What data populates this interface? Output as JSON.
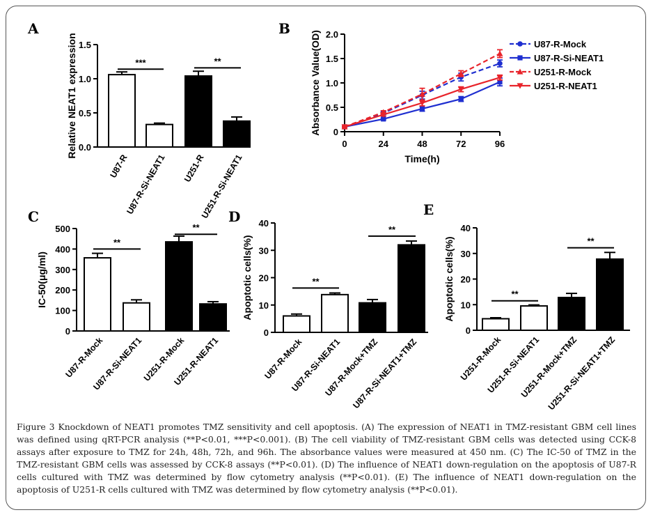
{
  "caption": "Figure 3 Knockdown of NEAT1 promotes TMZ sensitivity and cell apoptosis. (A) The expression of NEAT1 in TMZ-resistant GBM cell lines was defined using qRT-PCR analysis (**P<0.01, ***P<0.001). (B) The cell viability of TMZ-resistant GBM cells was detected using CCK-8 assays after exposure to TMZ for 24h, 48h, 72h, and 96h. The absorbance values were measured at 450 nm. (C) The IC-50 of TMZ in the TMZ-resistant GBM cells was assessed by CCK-8 assays (**P<0.01). (D) The influence of NEAT1 down-regulation on the apoptosis of U87-R cells cultured with TMZ was determined by flow cytometry analysis (**P<0.01). (E) The influence of NEAT1 down-regulation on the apoptosis of U251-R cells cultured with TMZ was determined by flow cytometry analysis (**P<0.01).",
  "chart_data": [
    {
      "panel": "A",
      "type": "bar",
      "title": "",
      "ylabel": "Relative NEAT1 expression",
      "xlabel": "",
      "categories": [
        "U87-R",
        "U87-R-Si-NEAT1",
        "U251-R",
        "U251-R-Si-NEAT1"
      ],
      "values": [
        1.06,
        0.33,
        1.04,
        0.38
      ],
      "errors": [
        0.04,
        0.02,
        0.07,
        0.06
      ],
      "fill": [
        "white",
        "white",
        "black",
        "black"
      ],
      "ylim": [
        0,
        1.5
      ],
      "yticks": [
        0.0,
        0.5,
        1.0,
        1.5
      ],
      "yticklabels": [
        "0.0",
        "0.5",
        "1.0",
        "1.5"
      ],
      "significance": [
        {
          "from": 0,
          "to": 1,
          "label": "***",
          "y": 1.14
        },
        {
          "from": 2,
          "to": 3,
          "label": "**",
          "y": 1.16
        }
      ]
    },
    {
      "panel": "B",
      "type": "line",
      "title": "",
      "xlabel": "Time(h)",
      "ylabel": "Absorbance Value(OD)",
      "x": [
        0,
        24,
        48,
        72,
        96
      ],
      "xticklabels": [
        "0",
        "24",
        "48",
        "72",
        "96"
      ],
      "xlim": [
        0,
        96
      ],
      "ylim": [
        0,
        2.0
      ],
      "yticks": [
        0,
        0.5,
        1.0,
        1.5,
        2.0
      ],
      "yticklabels": [
        "0",
        "0.5",
        "1.0",
        "1.5",
        "2.0"
      ],
      "legend_position": "right",
      "series": [
        {
          "name": "U87-R-Mock",
          "values": [
            0.1,
            0.38,
            0.75,
            1.12,
            1.4
          ],
          "errors": [
            0.01,
            0.03,
            0.08,
            0.08,
            0.07
          ],
          "color": "#1f2fd0",
          "dash": true,
          "marker": "circle"
        },
        {
          "name": "U87-R-Si-NEAT1",
          "values": [
            0.1,
            0.26,
            0.47,
            0.67,
            1.02
          ],
          "errors": [
            0.01,
            0.02,
            0.05,
            0.05,
            0.08
          ],
          "color": "#1f2fd0",
          "dash": false,
          "marker": "square"
        },
        {
          "name": "U251-R-Mock",
          "values": [
            0.1,
            0.4,
            0.77,
            1.19,
            1.6
          ],
          "errors": [
            0.01,
            0.03,
            0.12,
            0.06,
            0.08
          ],
          "color": "#e8242b",
          "dash": true,
          "marker": "triangle"
        },
        {
          "name": "U251-R-NEAT1",
          "values": [
            0.1,
            0.35,
            0.59,
            0.87,
            1.11
          ],
          "errors": [
            0.01,
            0.03,
            0.06,
            0.05,
            0.05
          ],
          "color": "#e8242b",
          "dash": false,
          "marker": "triangle-down"
        }
      ]
    },
    {
      "panel": "C",
      "type": "bar",
      "title": "",
      "ylabel": "IC-50(μg/ml)",
      "xlabel": "",
      "categories": [
        "U87-R-Mock",
        "U87-R-Si-NEAT1",
        "U251-R-Mock",
        "U251-R-NEAT1"
      ],
      "values": [
        357,
        137,
        435,
        132
      ],
      "errors": [
        22,
        15,
        28,
        11
      ],
      "fill": [
        "white",
        "white",
        "black",
        "black"
      ],
      "ylim": [
        0,
        500
      ],
      "yticks": [
        0,
        100,
        200,
        300,
        400,
        500
      ],
      "yticklabels": [
        "0",
        "100",
        "200",
        "300",
        "400",
        "500"
      ],
      "significance": [
        {
          "from": 0,
          "to": 1,
          "label": "**",
          "y": 400
        },
        {
          "from": 2,
          "to": 3,
          "label": "**",
          "y": 472
        }
      ]
    },
    {
      "panel": "D",
      "type": "bar",
      "title": "",
      "ylabel": "Apoptotic cells(%)",
      "xlabel": "",
      "categories": [
        "U87-R-Mock",
        "U87-R-Si-NEAT1",
        "U87-R-Mock+TMZ",
        "U87-R-Si-NEAT1+TMZ"
      ],
      "values": [
        6.0,
        13.8,
        10.8,
        32.0
      ],
      "errors": [
        0.7,
        0.6,
        1.2,
        1.4
      ],
      "fill": [
        "white",
        "white",
        "black",
        "black"
      ],
      "ylim": [
        0,
        40
      ],
      "yticks": [
        0,
        10,
        20,
        30,
        40
      ],
      "yticklabels": [
        "0",
        "10",
        "20",
        "30",
        "40"
      ],
      "significance": [
        {
          "from": 0,
          "to": 1,
          "label": "**",
          "y": 16.2
        },
        {
          "from": 2,
          "to": 3,
          "label": "**",
          "y": 35.2
        }
      ]
    },
    {
      "panel": "E",
      "type": "bar",
      "title": "",
      "ylabel": "Apoptotic cells(%)",
      "xlabel": "",
      "categories": [
        "U251-R-Mock",
        "U251-R-Si-NEAT1",
        "U251-R-Mock+TMZ",
        "U251-R-Si-NEAT1+TMZ"
      ],
      "values": [
        4.5,
        9.5,
        12.8,
        27.8
      ],
      "errors": [
        0.4,
        0.4,
        1.6,
        2.6
      ],
      "fill": [
        "white",
        "white",
        "black",
        "black"
      ],
      "ylim": [
        0,
        40
      ],
      "yticks": [
        0,
        10,
        20,
        30,
        40
      ],
      "yticklabels": [
        "0",
        "10",
        "20",
        "30",
        "40"
      ],
      "significance": [
        {
          "from": 0,
          "to": 1,
          "label": "**",
          "y": 11.5
        },
        {
          "from": 2,
          "to": 3,
          "label": "**",
          "y": 32.2
        }
      ]
    }
  ]
}
